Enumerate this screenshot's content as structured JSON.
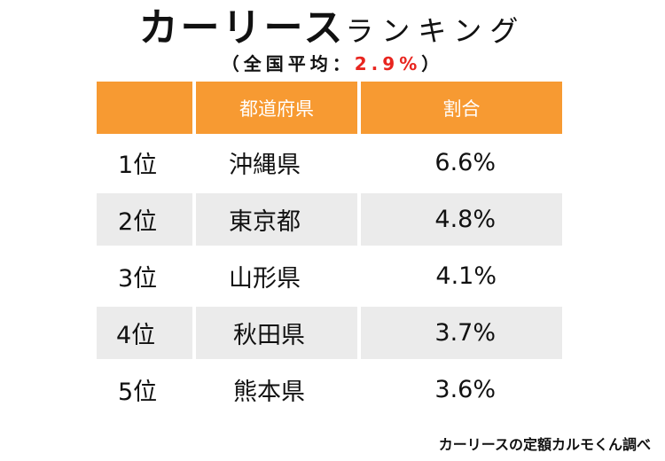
{
  "title": {
    "main": "カーリース",
    "sub": "ランキング"
  },
  "subtitle": {
    "open": "（",
    "label": "全国平均",
    "colon": "：",
    "value": "2.9%",
    "close": "）"
  },
  "table": {
    "headers": [
      "",
      "都道府県",
      "割合"
    ],
    "rows": [
      {
        "rank": "1位",
        "prefecture": "沖縄県",
        "share": "6.6%"
      },
      {
        "rank": "2位",
        "prefecture": "東京都",
        "share": "4.8%"
      },
      {
        "rank": "3位",
        "prefecture": "山形県",
        "share": "4.1%"
      },
      {
        "rank": "4位",
        "prefecture": "秋田県",
        "share": "3.7%"
      },
      {
        "rank": "5位",
        "prefecture": "熊本県",
        "share": "3.6%"
      }
    ]
  },
  "source": "カーリースの定額カルモくん調べ",
  "colors": {
    "header_bg": "#f79a32",
    "header_text": "#ffffff",
    "shaded_row_bg": "#ebebeb",
    "average_value": "#e8251f"
  }
}
